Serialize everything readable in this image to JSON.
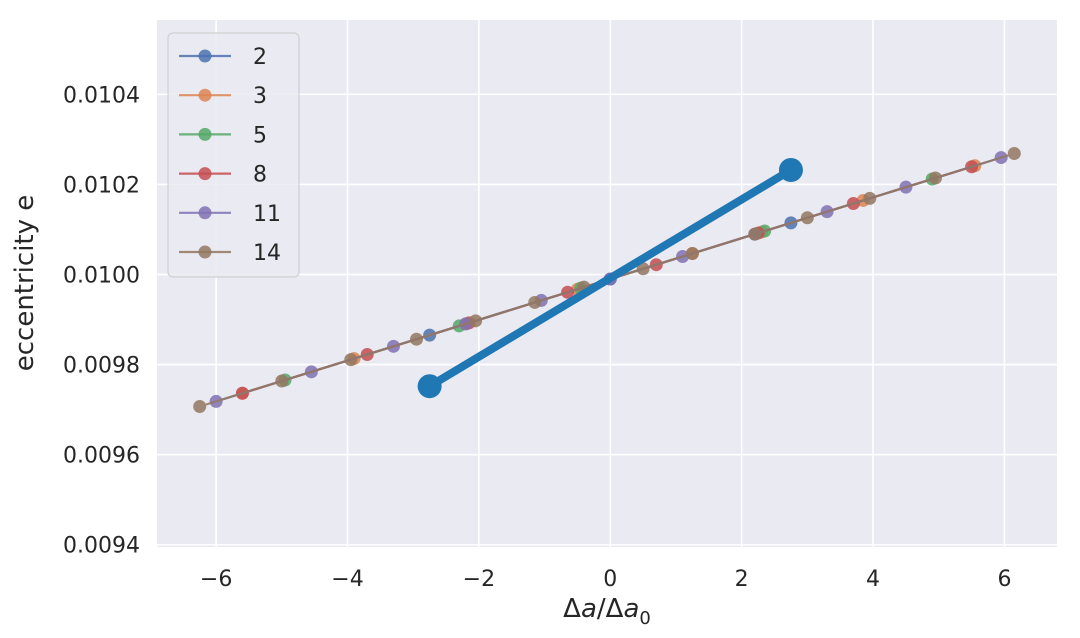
{
  "chart_data": {
    "type": "line",
    "xlabel_parts": [
      "Δ",
      "a",
      "/Δ",
      "a",
      "0"
    ],
    "ylabel": "eccentricity e",
    "xlim": [
      -6.9,
      6.8
    ],
    "ylim": [
      0.009395,
      0.010565
    ],
    "xticks": [
      -6,
      -4,
      -2,
      0,
      2,
      4,
      6
    ],
    "xtick_labels": [
      "−6",
      "−4",
      "−2",
      "0",
      "2",
      "4",
      "6"
    ],
    "yticks": [
      0.0094,
      0.0096,
      0.0098,
      0.01,
      0.0102,
      0.0104
    ],
    "ytick_labels": [
      "0.0094",
      "0.0096",
      "0.0098",
      "0.0100",
      "0.0102",
      "0.0104"
    ],
    "grid": true,
    "legend_position": "top-left",
    "relation": {
      "intercept": 0.00999,
      "slope": 4.53e-05
    },
    "series": [
      {
        "name": "2",
        "color": "#4c72b0",
        "x": [
          -2.75,
          0.0,
          2.75
        ]
      },
      {
        "name": "3",
        "color": "#dd8452",
        "x": [
          -5.6,
          -3.9,
          -2.2,
          -0.5,
          1.25,
          2.3,
          3.85,
          5.55
        ]
      },
      {
        "name": "5",
        "color": "#55a868",
        "x": [
          -4.95,
          -2.3,
          -0.45,
          2.35,
          4.9
        ]
      },
      {
        "name": "8",
        "color": "#c44e52",
        "x": [
          -5.6,
          -3.7,
          -2.15,
          -0.65,
          0.7,
          2.25,
          3.7,
          5.5
        ]
      },
      {
        "name": "11",
        "color": "#8172b3",
        "x": [
          -6.0,
          -4.55,
          -3.3,
          -2.2,
          -1.05,
          0.0,
          1.1,
          2.2,
          3.3,
          4.5,
          5.95
        ]
      },
      {
        "name": "14",
        "color": "#937860",
        "x": [
          -6.25,
          -5.0,
          -3.95,
          -2.95,
          -2.05,
          -1.15,
          -0.4,
          0.5,
          1.25,
          2.2,
          3.0,
          3.95,
          4.95,
          6.15
        ]
      }
    ],
    "highlight": {
      "color": "#1f77b4",
      "x": [
        -2.75,
        2.75
      ],
      "y": [
        0.009752,
        0.010232
      ]
    }
  }
}
